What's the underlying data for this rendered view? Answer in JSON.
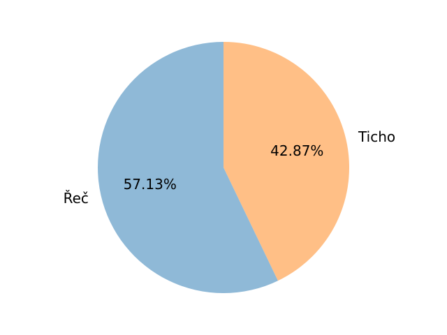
{
  "chart_data": {
    "type": "pie",
    "slices": [
      {
        "label": "Ticho",
        "value": 42.87,
        "value_label": "42.87%",
        "color": "#ffbf86"
      },
      {
        "label": "Řeč",
        "value": 57.13,
        "value_label": "57.13%",
        "color": "#8fb9d7"
      }
    ],
    "start_angle": "12 o'clock",
    "direction": "clockwise",
    "title": "",
    "legend": "none"
  }
}
